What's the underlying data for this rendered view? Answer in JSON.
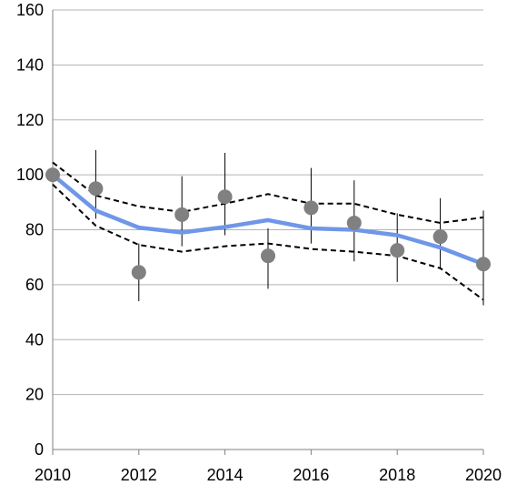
{
  "chart_data": {
    "type": "line",
    "title": "",
    "xlabel": "",
    "ylabel": "",
    "xlim": [
      2010,
      2020
    ],
    "ylim": [
      0,
      160
    ],
    "x_ticks": [
      "2010",
      "2012",
      "2014",
      "2016",
      "2018",
      "2020"
    ],
    "y_ticks": [
      "0",
      "20",
      "40",
      "60",
      "80",
      "100",
      "120",
      "140",
      "160"
    ],
    "grid": "horizontal",
    "legend": "none",
    "x": [
      2010,
      2011,
      2012,
      2013,
      2014,
      2015,
      2016,
      2017,
      2018,
      2019,
      2020
    ],
    "series": [
      {
        "kind": "points",
        "color": "#808080",
        "values": [
          100,
          95,
          64.5,
          85.5,
          92,
          70.5,
          88,
          82.5,
          72.5,
          77.5,
          67.5
        ],
        "error_low": [
          100,
          84,
          54,
          74,
          78,
          58.5,
          75,
          68.5,
          61,
          66,
          52.5
        ],
        "error_high": [
          100,
          109,
          75,
          99.5,
          108,
          80.5,
          102.5,
          98,
          86,
          91.5,
          87
        ]
      },
      {
        "kind": "trend",
        "color": "#6f96e8",
        "values": [
          100,
          87,
          80.8,
          79,
          81,
          83.5,
          80.5,
          80,
          78,
          73.5,
          67.5
        ]
      },
      {
        "kind": "upper-bound",
        "color": "#000000",
        "values": [
          104.5,
          92.5,
          88.5,
          86.5,
          89.5,
          93,
          89.5,
          89.5,
          85.5,
          82.5,
          84.5
        ]
      },
      {
        "kind": "lower-bound",
        "color": "#000000",
        "values": [
          96.5,
          81.5,
          74.5,
          72,
          74,
          75,
          73,
          72,
          70.5,
          66,
          54.5
        ]
      }
    ]
  }
}
